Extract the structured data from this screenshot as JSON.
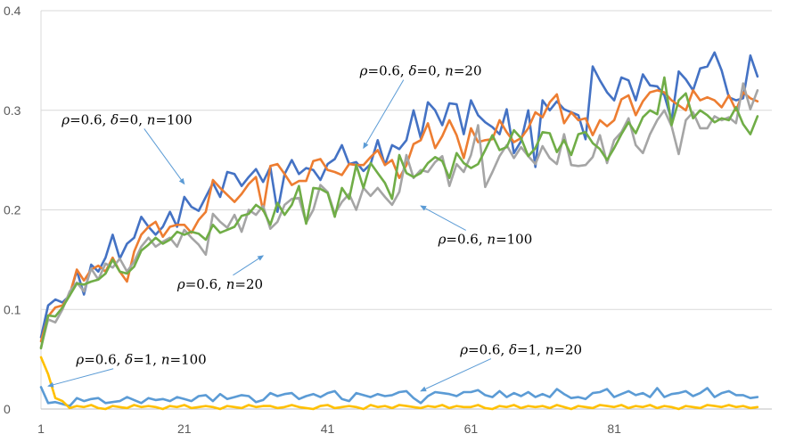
{
  "chart_data": {
    "type": "line",
    "title": "",
    "xlabel": "",
    "ylabel": "",
    "xlim": [
      1,
      103
    ],
    "ylim": [
      0,
      0.4
    ],
    "x_ticks": [
      1,
      21,
      41,
      61,
      81
    ],
    "y_ticks": [
      0,
      0.1,
      0.2,
      0.3,
      0.4
    ],
    "y_tick_labels": [
      "0",
      "0.1",
      "0.2",
      "0.3",
      "0.4"
    ],
    "grid": "horizontal",
    "legend": "none",
    "x_start": 1,
    "series": [
      {
        "color": "#4472c4",
        "values": [
          0.072,
          0.104,
          0.11,
          0.107,
          0.114,
          0.139,
          0.115,
          0.145,
          0.138,
          0.152,
          0.175,
          0.151,
          0.166,
          0.172,
          0.193,
          0.183,
          0.175,
          0.183,
          0.198,
          0.183,
          0.213,
          0.203,
          0.199,
          0.213,
          0.227,
          0.213,
          0.238,
          0.236,
          0.224,
          0.233,
          0.241,
          0.228,
          0.243,
          0.198,
          0.236,
          0.25,
          0.236,
          0.242,
          0.24,
          0.23,
          0.246,
          0.251,
          0.265,
          0.246,
          0.248,
          0.239,
          0.246,
          0.27,
          0.245,
          0.265,
          0.261,
          0.27,
          0.3,
          0.272,
          0.308,
          0.3,
          0.285,
          0.307,
          0.306,
          0.276,
          0.31,
          0.295,
          0.288,
          0.283,
          0.276,
          0.301,
          0.257,
          0.269,
          0.3,
          0.243,
          0.31,
          0.3,
          0.309,
          0.301,
          0.298,
          0.295,
          0.271,
          0.344,
          0.33,
          0.318,
          0.31,
          0.333,
          0.33,
          0.31,
          0.336,
          0.325,
          0.324,
          0.315,
          0.29,
          0.339,
          0.331,
          0.32,
          0.342,
          0.344,
          0.358,
          0.34,
          0.313,
          0.31,
          0.312,
          0.355,
          0.334
        ]
      },
      {
        "color": "#ed7d31",
        "values": [
          0.068,
          0.093,
          0.102,
          0.104,
          0.115,
          0.14,
          0.129,
          0.14,
          0.144,
          0.138,
          0.152,
          0.138,
          0.128,
          0.158,
          0.175,
          0.183,
          0.188,
          0.173,
          0.183,
          0.185,
          0.185,
          0.177,
          0.19,
          0.198,
          0.23,
          0.222,
          0.215,
          0.208,
          0.216,
          0.226,
          0.233,
          0.199,
          0.244,
          0.246,
          0.236,
          0.225,
          0.229,
          0.229,
          0.249,
          0.251,
          0.24,
          0.238,
          0.235,
          0.246,
          0.245,
          0.245,
          0.253,
          0.26,
          0.245,
          0.25,
          0.232,
          0.245,
          0.266,
          0.27,
          0.287,
          0.262,
          0.274,
          0.29,
          0.275,
          0.252,
          0.282,
          0.268,
          0.27,
          0.271,
          0.29,
          0.278,
          0.268,
          0.272,
          0.282,
          0.298,
          0.293,
          0.308,
          0.316,
          0.287,
          0.298,
          0.29,
          0.292,
          0.275,
          0.29,
          0.284,
          0.29,
          0.311,
          0.315,
          0.295,
          0.309,
          0.318,
          0.32,
          0.318,
          0.31,
          0.305,
          0.3,
          0.32,
          0.31,
          0.313,
          0.31,
          0.303,
          0.315,
          0.3,
          0.318,
          0.312,
          0.309
        ]
      },
      {
        "color": "#a5a5a5",
        "values": [
          0.062,
          0.09,
          0.087,
          0.1,
          0.118,
          0.127,
          0.118,
          0.141,
          0.13,
          0.146,
          0.142,
          0.151,
          0.138,
          0.148,
          0.163,
          0.172,
          0.163,
          0.168,
          0.172,
          0.163,
          0.18,
          0.172,
          0.165,
          0.155,
          0.196,
          0.188,
          0.182,
          0.195,
          0.178,
          0.2,
          0.195,
          0.204,
          0.181,
          0.188,
          0.205,
          0.211,
          0.212,
          0.187,
          0.2,
          0.225,
          0.218,
          0.196,
          0.208,
          0.216,
          0.2,
          0.222,
          0.214,
          0.222,
          0.213,
          0.205,
          0.218,
          0.255,
          0.232,
          0.24,
          0.238,
          0.248,
          0.254,
          0.224,
          0.246,
          0.238,
          0.255,
          0.285,
          0.223,
          0.238,
          0.254,
          0.265,
          0.252,
          0.263,
          0.254,
          0.246,
          0.264,
          0.252,
          0.246,
          0.276,
          0.245,
          0.244,
          0.245,
          0.253,
          0.275,
          0.247,
          0.27,
          0.278,
          0.292,
          0.265,
          0.257,
          0.276,
          0.29,
          0.3,
          0.284,
          0.256,
          0.29,
          0.298,
          0.282,
          0.282,
          0.294,
          0.29,
          0.293,
          0.287,
          0.327,
          0.301,
          0.32
        ]
      },
      {
        "color": "#70ad47",
        "values": [
          0.061,
          0.094,
          0.093,
          0.102,
          0.114,
          0.126,
          0.125,
          0.128,
          0.13,
          0.136,
          0.15,
          0.138,
          0.136,
          0.143,
          0.159,
          0.165,
          0.172,
          0.166,
          0.17,
          0.178,
          0.175,
          0.178,
          0.176,
          0.17,
          0.185,
          0.177,
          0.18,
          0.183,
          0.194,
          0.196,
          0.205,
          0.2,
          0.185,
          0.207,
          0.195,
          0.205,
          0.224,
          0.186,
          0.222,
          0.221,
          0.217,
          0.193,
          0.222,
          0.211,
          0.245,
          0.222,
          0.247,
          0.237,
          0.227,
          0.211,
          0.255,
          0.237,
          0.233,
          0.237,
          0.247,
          0.253,
          0.249,
          0.232,
          0.257,
          0.247,
          0.242,
          0.246,
          0.26,
          0.275,
          0.26,
          0.263,
          0.28,
          0.272,
          0.254,
          0.262,
          0.278,
          0.277,
          0.258,
          0.27,
          0.255,
          0.276,
          0.278,
          0.267,
          0.261,
          0.25,
          0.262,
          0.276,
          0.288,
          0.277,
          0.293,
          0.3,
          0.296,
          0.333,
          0.285,
          0.31,
          0.317,
          0.292,
          0.3,
          0.295,
          0.288,
          0.292,
          0.29,
          0.303,
          0.286,
          0.276,
          0.294
        ]
      },
      {
        "color": "#5b9bd5",
        "values": [
          0.022,
          0.006,
          0.007,
          0.005,
          0.003,
          0.011,
          0.008,
          0.01,
          0.011,
          0.006,
          0.007,
          0.008,
          0.012,
          0.009,
          0.006,
          0.011,
          0.009,
          0.01,
          0.008,
          0.012,
          0.01,
          0.008,
          0.013,
          0.014,
          0.008,
          0.015,
          0.01,
          0.012,
          0.014,
          0.013,
          0.007,
          0.009,
          0.016,
          0.013,
          0.015,
          0.016,
          0.01,
          0.013,
          0.015,
          0.012,
          0.016,
          0.018,
          0.01,
          0.008,
          0.016,
          0.014,
          0.012,
          0.015,
          0.013,
          0.014,
          0.017,
          0.018,
          0.011,
          0.006,
          0.013,
          0.017,
          0.016,
          0.015,
          0.013,
          0.017,
          0.017,
          0.019,
          0.014,
          0.012,
          0.018,
          0.012,
          0.016,
          0.013,
          0.017,
          0.012,
          0.015,
          0.012,
          0.02,
          0.015,
          0.011,
          0.012,
          0.01,
          0.016,
          0.017,
          0.02,
          0.012,
          0.015,
          0.018,
          0.014,
          0.016,
          0.012,
          0.021,
          0.012,
          0.015,
          0.016,
          0.018,
          0.013,
          0.016,
          0.021,
          0.012,
          0.016,
          0.018,
          0.014,
          0.014,
          0.011,
          0.012
        ]
      },
      {
        "color": "#ffc000",
        "values": [
          0.052,
          0.035,
          0.011,
          0.008,
          0.001,
          0.003,
          0.002,
          0.004,
          0.001,
          0.0,
          0.003,
          0.002,
          0.001,
          0.004,
          0.002,
          0.003,
          0.002,
          0.0,
          0.003,
          0.002,
          0.004,
          0.001,
          0.002,
          0.003,
          0.002,
          0.0,
          0.003,
          0.002,
          0.001,
          0.004,
          0.002,
          0.003,
          0.003,
          0.001,
          0.002,
          0.004,
          0.002,
          0.001,
          0.0,
          0.003,
          0.004,
          0.001,
          0.002,
          0.003,
          0.002,
          0.0,
          0.004,
          0.002,
          0.003,
          0.001,
          0.004,
          0.003,
          0.002,
          0.001,
          0.003,
          0.002,
          0.004,
          0.001,
          0.003,
          0.002,
          0.002,
          0.004,
          0.001,
          0.0,
          0.003,
          0.002,
          0.004,
          0.001,
          0.003,
          0.002,
          0.003,
          0.001,
          0.004,
          0.002,
          0.0,
          0.003,
          0.002,
          0.001,
          0.004,
          0.003,
          0.002,
          0.004,
          0.001,
          0.003,
          0.002,
          0.004,
          0.001,
          0.003,
          0.002,
          0.0,
          0.003,
          0.002,
          0.001,
          0.004,
          0.003,
          0.002,
          0.004,
          0.002,
          0.003,
          0.001,
          0.002
        ]
      }
    ],
    "annotations": [
      {
        "id": "a1",
        "rho": "0.6",
        "delta": "0",
        "n": "20",
        "x": 54,
        "y": 0.335,
        "arrow_to": [
          46,
          0.262
        ]
      },
      {
        "id": "a2",
        "rho": "0.6",
        "delta": "0",
        "n": "100",
        "x": 13,
        "y": 0.286,
        "arrow_to": [
          21,
          0.226
        ]
      },
      {
        "id": "a3",
        "rho": "0.6",
        "delta": null,
        "n": "100",
        "x": 63,
        "y": 0.166,
        "arrow_to": [
          54,
          0.204
        ]
      },
      {
        "id": "a4",
        "rho": "0.6",
        "delta": null,
        "n": "20",
        "x": 26,
        "y": 0.121,
        "arrow_to": [
          32,
          0.154
        ]
      },
      {
        "id": "a5",
        "rho": "0.6",
        "delta": "1",
        "n": "100",
        "x": 15,
        "y": 0.045,
        "arrow_to": [
          2,
          0.023
        ]
      },
      {
        "id": "a6",
        "rho": "0.6",
        "delta": "1",
        "n": "20",
        "x": 68,
        "y": 0.055,
        "arrow_to": [
          54,
          0.018
        ]
      }
    ]
  }
}
